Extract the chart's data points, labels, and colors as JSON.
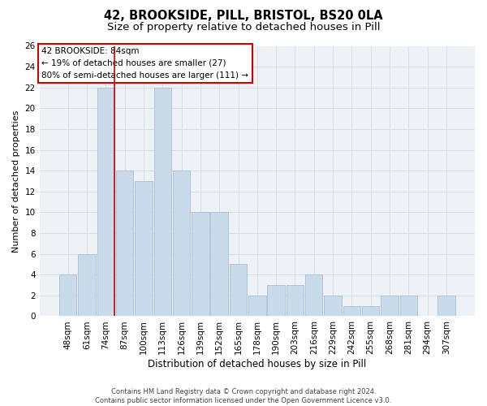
{
  "title1": "42, BROOKSIDE, PILL, BRISTOL, BS20 0LA",
  "title2": "Size of property relative to detached houses in Pill",
  "xlabel": "Distribution of detached houses by size in Pill",
  "ylabel": "Number of detached properties",
  "bar_labels": [
    "48sqm",
    "61sqm",
    "74sqm",
    "87sqm",
    "100sqm",
    "113sqm",
    "126sqm",
    "139sqm",
    "152sqm",
    "165sqm",
    "178sqm",
    "190sqm",
    "203sqm",
    "216sqm",
    "229sqm",
    "242sqm",
    "255sqm",
    "268sqm",
    "281sqm",
    "294sqm",
    "307sqm"
  ],
  "bar_values": [
    4,
    6,
    22,
    14,
    13,
    22,
    14,
    10,
    10,
    5,
    2,
    3,
    3,
    4,
    2,
    1,
    1,
    2,
    2,
    0,
    2
  ],
  "bar_color": "#c9daea",
  "bar_edge_color": "#aabfd4",
  "grid_color": "#d5dfe8",
  "bg_color": "#eef2f7",
  "red_line_color": "#cc0000",
  "annotation_text": "42 BROOKSIDE: 84sqm\n← 19% of detached houses are smaller (27)\n80% of semi-detached houses are larger (111) →",
  "annotation_box_color": "#ffffff",
  "annotation_box_edge": "#cc0000",
  "ylim": [
    0,
    26
  ],
  "yticks": [
    0,
    2,
    4,
    6,
    8,
    10,
    12,
    14,
    16,
    18,
    20,
    22,
    24,
    26
  ],
  "footnote": "Contains HM Land Registry data © Crown copyright and database right 2024.\nContains public sector information licensed under the Open Government Licence v3.0.",
  "title1_fontsize": 10.5,
  "title2_fontsize": 9.5,
  "xlabel_fontsize": 8.5,
  "ylabel_fontsize": 8,
  "tick_fontsize": 7.5,
  "annotation_fontsize": 7.5,
  "footnote_fontsize": 6
}
